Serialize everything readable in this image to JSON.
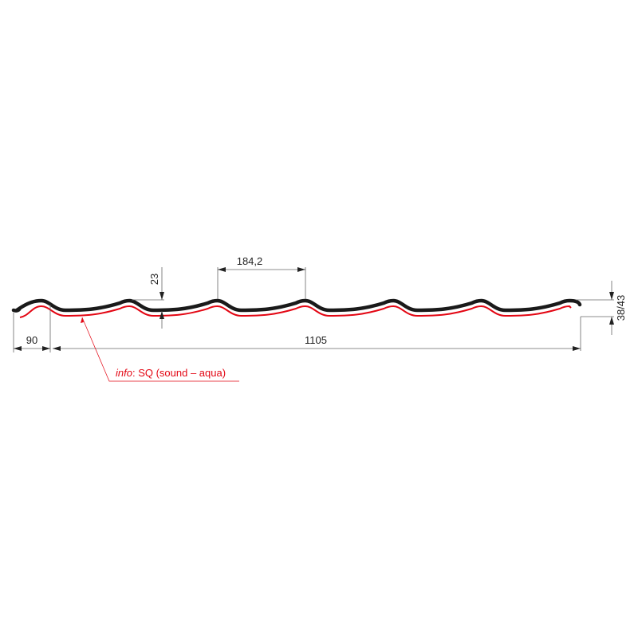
{
  "dimensions": {
    "overlap_width": "90",
    "effective_width": "1105",
    "wave_pitch": "184,2",
    "wave_height": "23",
    "total_height": "38/43"
  },
  "note": {
    "prefix": "info",
    "text": ": SQ (sound – aqua)"
  },
  "colors": {
    "profile": "#1a1a1a",
    "coating": "#e30613",
    "dimension": "#555555"
  }
}
